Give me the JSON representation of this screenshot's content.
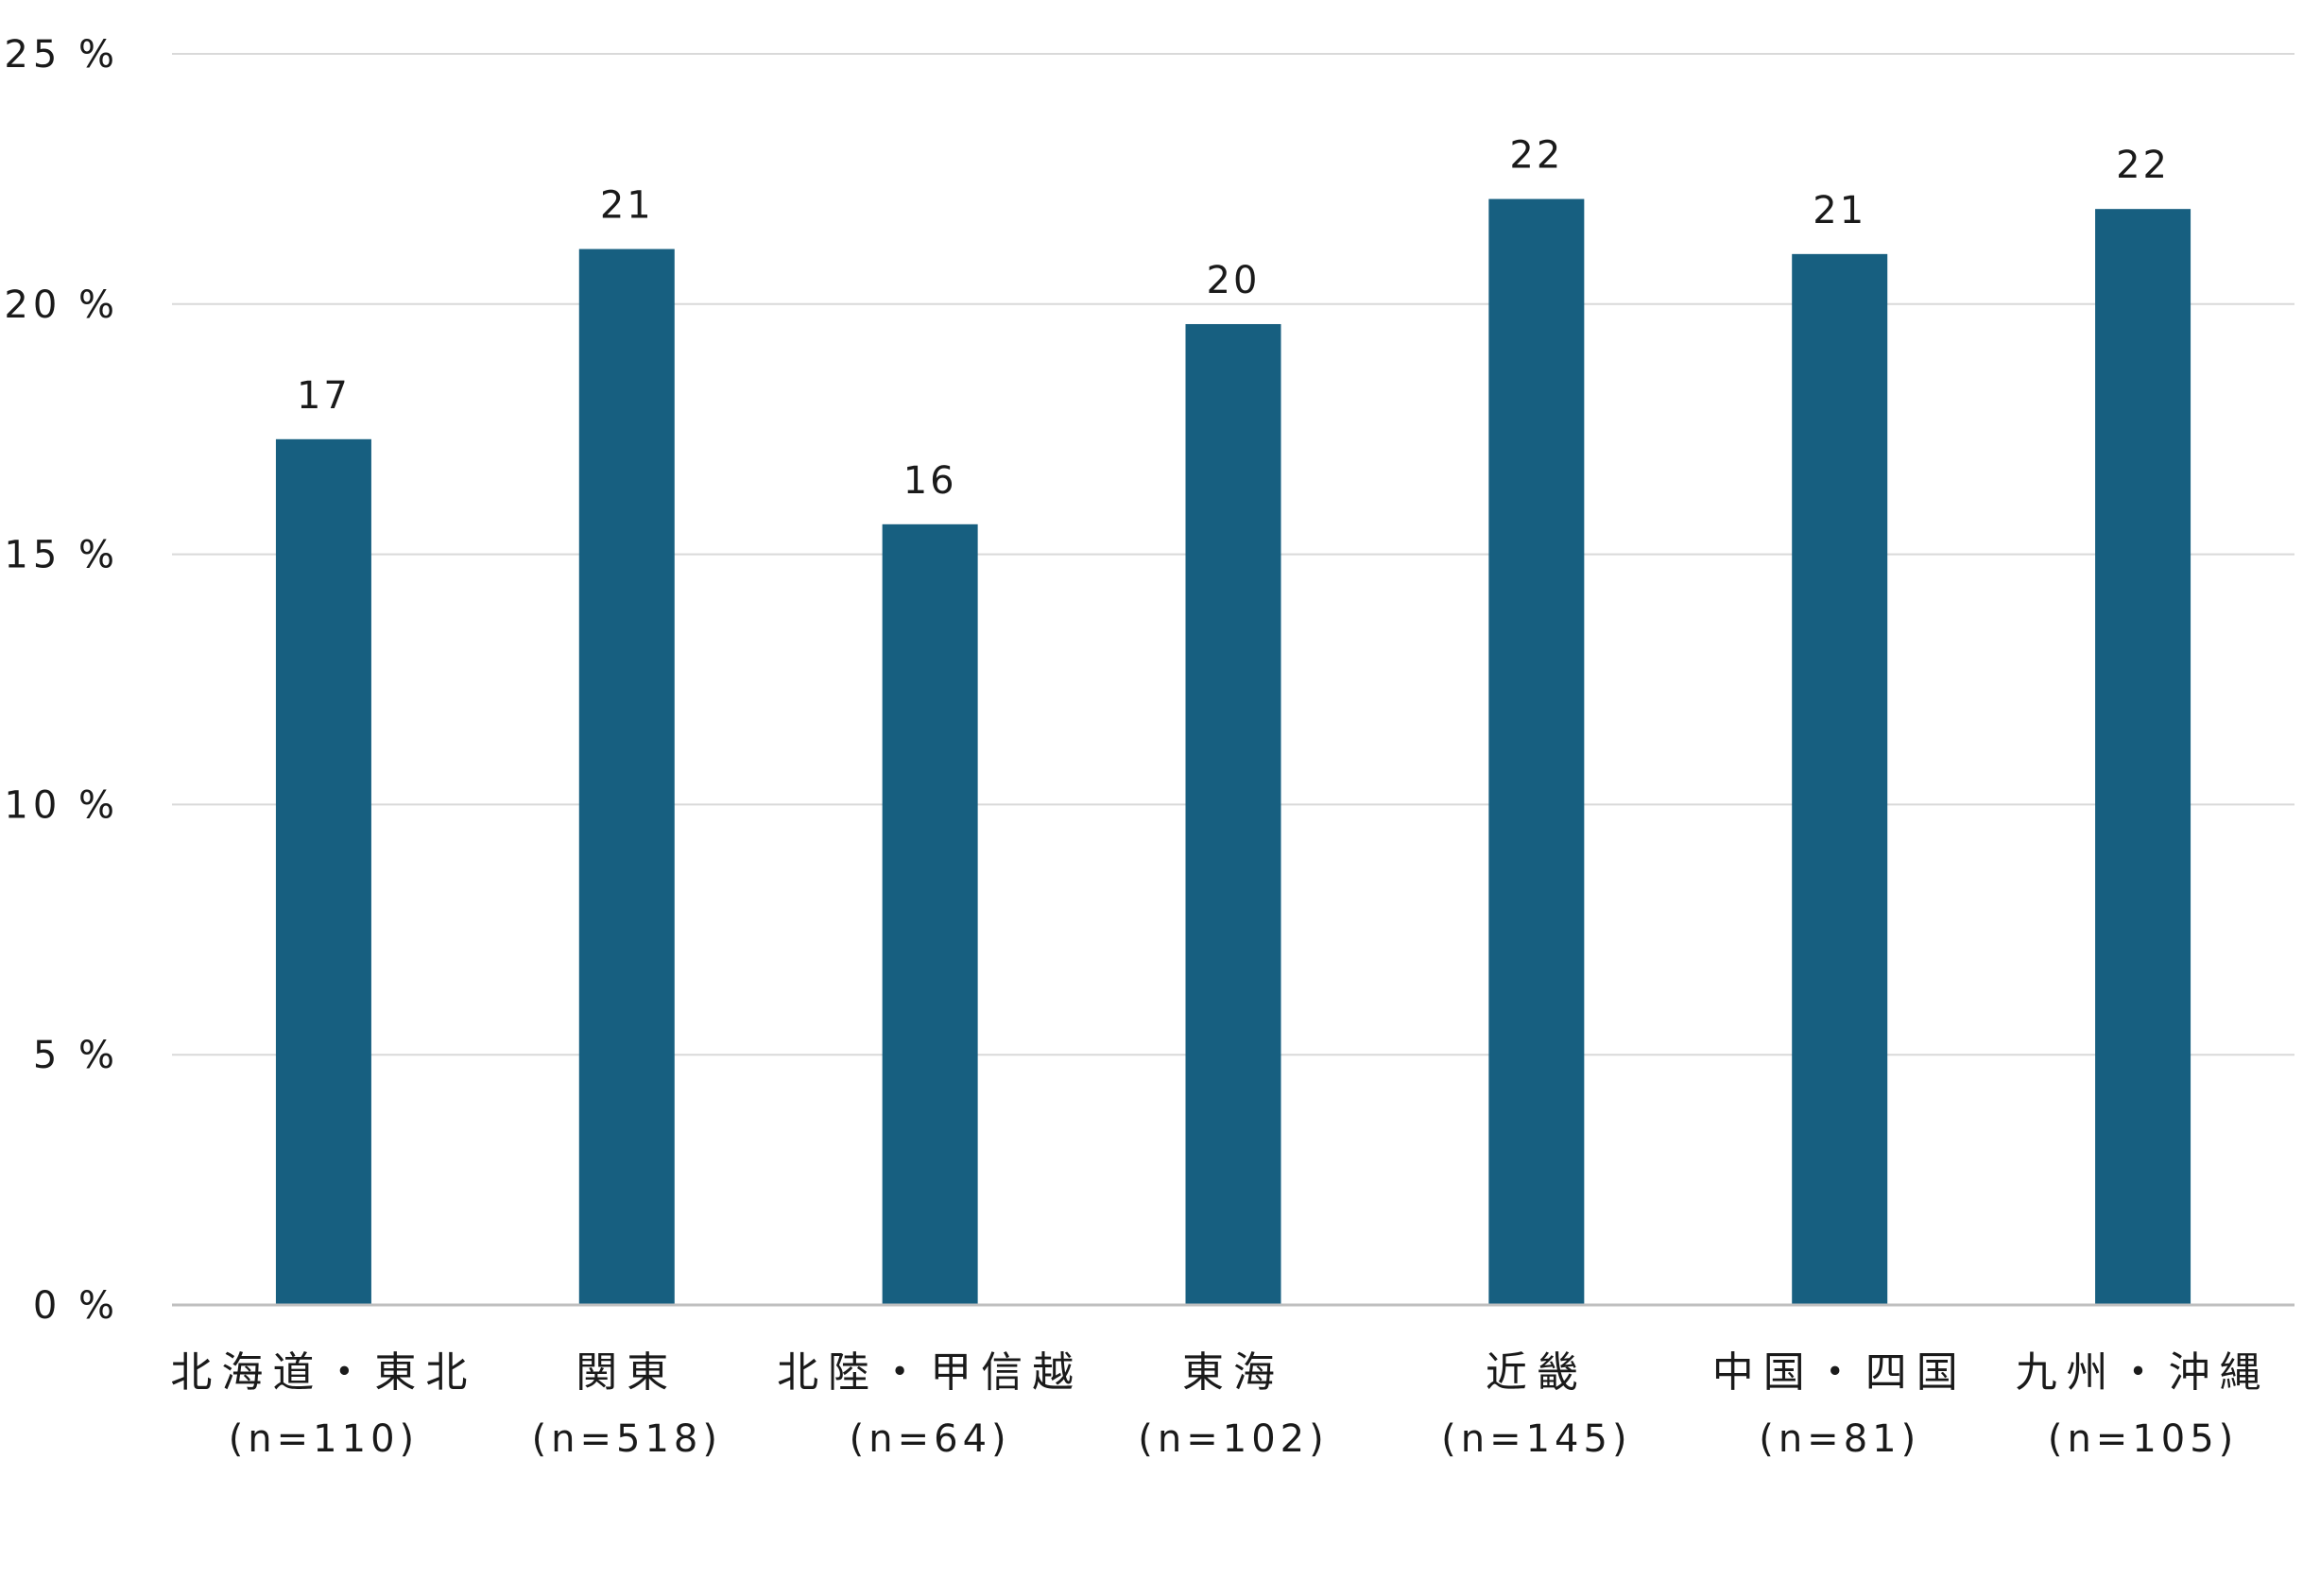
{
  "chart_data": {
    "type": "bar",
    "categories": [
      {
        "label": "北海道・東北",
        "sub": "(n=110)"
      },
      {
        "label": "関東",
        "sub": "(n=518)"
      },
      {
        "label": "北陸・甲信越",
        "sub": "(n=64)"
      },
      {
        "label": "東海",
        "sub": "(n=102)"
      },
      {
        "label": "近畿",
        "sub": "(n=145)"
      },
      {
        "label": "中国・四国",
        "sub": "(n=81)"
      },
      {
        "label": "九州・沖縄",
        "sub": "(n=105)"
      }
    ],
    "values": [
      17.3,
      21.1,
      15.6,
      19.6,
      22.1,
      21.0,
      21.9
    ],
    "data_labels": [
      "17",
      "21",
      "16",
      "20",
      "22",
      "21",
      "22"
    ],
    "y_ticks": [
      {
        "value": 0,
        "label": "0 %"
      },
      {
        "value": 5,
        "label": "5 %"
      },
      {
        "value": 10,
        "label": "10 %"
      },
      {
        "value": 15,
        "label": "15 %"
      },
      {
        "value": 20,
        "label": "20 %"
      },
      {
        "value": 25,
        "label": "25 %"
      }
    ],
    "ylim": [
      0,
      25
    ],
    "grid": true,
    "legend": "none",
    "bar_color": "#175f80",
    "grid_color": "#d9d9d9",
    "axis_color": "#bfbfbf"
  }
}
